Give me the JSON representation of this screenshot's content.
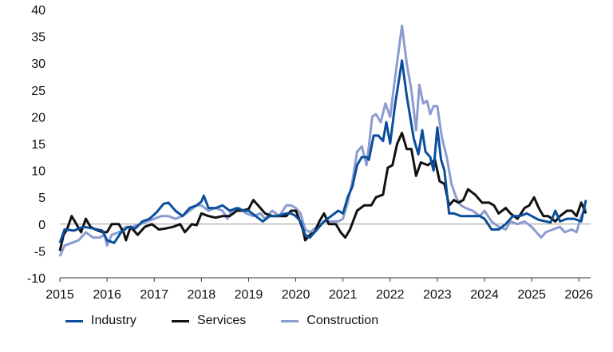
{
  "chart_data": {
    "type": "line",
    "title": "",
    "xlabel": "",
    "ylabel": "",
    "ylim": [
      -10,
      40
    ],
    "yticks": [
      -10,
      -5,
      0,
      5,
      10,
      15,
      20,
      25,
      30,
      35,
      40
    ],
    "xlim": [
      2015,
      2026.25
    ],
    "xticks": [
      2015,
      2016,
      2017,
      2018,
      2019,
      2020,
      2021,
      2022,
      2023,
      2024,
      2025,
      2026
    ],
    "grid": "horizontal",
    "legend_position": "bottom-left",
    "series": [
      {
        "name": "Industry",
        "color": "#0b4f9c",
        "points": [
          [
            2015.0,
            -3.5
          ],
          [
            2015.1,
            -1.0
          ],
          [
            2015.3,
            -1.2
          ],
          [
            2015.5,
            -0.5
          ],
          [
            2015.7,
            -0.8
          ],
          [
            2015.9,
            -1.2
          ],
          [
            2016.0,
            -3.0
          ],
          [
            2016.15,
            -3.5
          ],
          [
            2016.3,
            -1.5
          ],
          [
            2016.45,
            -0.5
          ],
          [
            2016.6,
            -0.8
          ],
          [
            2016.75,
            0.5
          ],
          [
            2016.9,
            1.0
          ],
          [
            2017.05,
            2.2
          ],
          [
            2017.2,
            3.8
          ],
          [
            2017.3,
            4.0
          ],
          [
            2017.45,
            2.5
          ],
          [
            2017.6,
            1.5
          ],
          [
            2017.75,
            3.0
          ],
          [
            2017.9,
            3.5
          ],
          [
            2018.0,
            4.2
          ],
          [
            2018.05,
            5.3
          ],
          [
            2018.15,
            3.0
          ],
          [
            2018.3,
            3.0
          ],
          [
            2018.45,
            3.5
          ],
          [
            2018.6,
            2.5
          ],
          [
            2018.75,
            3.0
          ],
          [
            2018.9,
            2.5
          ],
          [
            2019.0,
            2.5
          ],
          [
            2019.15,
            1.5
          ],
          [
            2019.3,
            0.5
          ],
          [
            2019.45,
            1.5
          ],
          [
            2019.6,
            1.5
          ],
          [
            2019.8,
            2.0
          ],
          [
            2019.9,
            2.0
          ],
          [
            2020.0,
            1.5
          ],
          [
            2020.1,
            0.5
          ],
          [
            2020.2,
            -2.0
          ],
          [
            2020.3,
            -2.5
          ],
          [
            2020.45,
            -1.0
          ],
          [
            2020.6,
            0.5
          ],
          [
            2020.75,
            1.5
          ],
          [
            2020.9,
            2.5
          ],
          [
            2021.0,
            2.0
          ],
          [
            2021.1,
            5.0
          ],
          [
            2021.2,
            7.0
          ],
          [
            2021.3,
            11.0
          ],
          [
            2021.4,
            12.5
          ],
          [
            2021.5,
            12.5
          ],
          [
            2021.55,
            12.0
          ],
          [
            2021.65,
            16.5
          ],
          [
            2021.75,
            16.5
          ],
          [
            2021.85,
            15.5
          ],
          [
            2021.92,
            19.0
          ],
          [
            2022.0,
            15.0
          ],
          [
            2022.1,
            22.0
          ],
          [
            2022.25,
            30.5
          ],
          [
            2022.35,
            24.0
          ],
          [
            2022.5,
            16.0
          ],
          [
            2022.6,
            13.0
          ],
          [
            2022.68,
            17.5
          ],
          [
            2022.75,
            13.5
          ],
          [
            2022.85,
            12.5
          ],
          [
            2022.92,
            10.0
          ],
          [
            2023.0,
            18.0
          ],
          [
            2023.08,
            12.0
          ],
          [
            2023.15,
            10.0
          ],
          [
            2023.25,
            2.0
          ],
          [
            2023.35,
            2.0
          ],
          [
            2023.5,
            1.5
          ],
          [
            2023.6,
            1.5
          ],
          [
            2023.75,
            1.5
          ],
          [
            2023.9,
            1.5
          ],
          [
            2024.0,
            1.0
          ],
          [
            2024.15,
            -1.0
          ],
          [
            2024.3,
            -1.0
          ],
          [
            2024.45,
            0.0
          ],
          [
            2024.6,
            1.5
          ],
          [
            2024.75,
            1.5
          ],
          [
            2024.9,
            2.0
          ],
          [
            2025.0,
            1.5
          ],
          [
            2025.15,
            0.8
          ],
          [
            2025.3,
            0.5
          ],
          [
            2025.4,
            0.3
          ],
          [
            2025.5,
            2.5
          ],
          [
            2025.6,
            0.5
          ],
          [
            2025.75,
            1.0
          ],
          [
            2025.9,
            1.0
          ],
          [
            2026.05,
            0.5
          ],
          [
            2026.15,
            4.5
          ]
        ]
      },
      {
        "name": "Services",
        "color": "#111111",
        "points": [
          [
            2015.0,
            -5.0
          ],
          [
            2015.08,
            -2.0
          ],
          [
            2015.15,
            -1.0
          ],
          [
            2015.25,
            1.5
          ],
          [
            2015.35,
            0.0
          ],
          [
            2015.45,
            -1.5
          ],
          [
            2015.55,
            1.0
          ],
          [
            2015.65,
            -0.5
          ],
          [
            2015.75,
            -1.0
          ],
          [
            2015.9,
            -1.5
          ],
          [
            2016.0,
            -1.5
          ],
          [
            2016.1,
            0.0
          ],
          [
            2016.25,
            0.0
          ],
          [
            2016.35,
            -1.5
          ],
          [
            2016.4,
            -3.0
          ],
          [
            2016.5,
            -0.5
          ],
          [
            2016.65,
            -2.0
          ],
          [
            2016.8,
            -0.5
          ],
          [
            2016.95,
            0.0
          ],
          [
            2017.1,
            -1.0
          ],
          [
            2017.25,
            -0.8
          ],
          [
            2017.4,
            -0.5
          ],
          [
            2017.55,
            0.0
          ],
          [
            2017.65,
            -1.5
          ],
          [
            2017.8,
            0.0
          ],
          [
            2017.9,
            -0.2
          ],
          [
            2018.0,
            2.0
          ],
          [
            2018.15,
            1.5
          ],
          [
            2018.3,
            1.2
          ],
          [
            2018.45,
            1.5
          ],
          [
            2018.6,
            1.5
          ],
          [
            2018.75,
            2.5
          ],
          [
            2018.85,
            2.5
          ],
          [
            2019.0,
            2.8
          ],
          [
            2019.1,
            4.5
          ],
          [
            2019.2,
            3.5
          ],
          [
            2019.35,
            2.0
          ],
          [
            2019.5,
            1.5
          ],
          [
            2019.65,
            1.5
          ],
          [
            2019.8,
            1.5
          ],
          [
            2019.9,
            2.5
          ],
          [
            2020.0,
            2.5
          ],
          [
            2020.05,
            1.5
          ],
          [
            2020.15,
            -1.0
          ],
          [
            2020.2,
            -3.0
          ],
          [
            2020.3,
            -2.0
          ],
          [
            2020.4,
            -1.5
          ],
          [
            2020.5,
            0.5
          ],
          [
            2020.6,
            2.0
          ],
          [
            2020.7,
            0.0
          ],
          [
            2020.85,
            0.0
          ],
          [
            2020.95,
            -1.5
          ],
          [
            2021.05,
            -2.5
          ],
          [
            2021.15,
            -1.0
          ],
          [
            2021.3,
            2.5
          ],
          [
            2021.45,
            3.5
          ],
          [
            2021.6,
            3.5
          ],
          [
            2021.7,
            5.0
          ],
          [
            2021.85,
            5.5
          ],
          [
            2021.95,
            10.5
          ],
          [
            2022.05,
            11.0
          ],
          [
            2022.15,
            15.0
          ],
          [
            2022.25,
            17.0
          ],
          [
            2022.35,
            14.0
          ],
          [
            2022.45,
            14.0
          ],
          [
            2022.55,
            9.0
          ],
          [
            2022.65,
            11.5
          ],
          [
            2022.8,
            11.0
          ],
          [
            2022.95,
            12.0
          ],
          [
            2023.05,
            8.0
          ],
          [
            2023.15,
            7.5
          ],
          [
            2023.25,
            3.5
          ],
          [
            2023.35,
            4.5
          ],
          [
            2023.45,
            4.0
          ],
          [
            2023.55,
            4.5
          ],
          [
            2023.65,
            6.5
          ],
          [
            2023.8,
            5.5
          ],
          [
            2023.95,
            4.0
          ],
          [
            2024.1,
            4.0
          ],
          [
            2024.2,
            3.5
          ],
          [
            2024.3,
            2.0
          ],
          [
            2024.45,
            3.0
          ],
          [
            2024.55,
            2.0
          ],
          [
            2024.7,
            1.0
          ],
          [
            2024.85,
            3.0
          ],
          [
            2024.95,
            3.5
          ],
          [
            2025.05,
            5.0
          ],
          [
            2025.15,
            3.0
          ],
          [
            2025.25,
            1.5
          ],
          [
            2025.35,
            1.5
          ],
          [
            2025.5,
            0.5
          ],
          [
            2025.6,
            1.5
          ],
          [
            2025.75,
            2.5
          ],
          [
            2025.85,
            2.5
          ],
          [
            2025.95,
            1.5
          ],
          [
            2026.05,
            4.0
          ],
          [
            2026.15,
            2.0
          ]
        ]
      },
      {
        "name": "Construction",
        "color": "#8c9cd0",
        "points": [
          [
            2015.0,
            -6.0
          ],
          [
            2015.1,
            -4.0
          ],
          [
            2015.25,
            -3.5
          ],
          [
            2015.4,
            -3.0
          ],
          [
            2015.55,
            -1.5
          ],
          [
            2015.7,
            -2.5
          ],
          [
            2015.85,
            -2.5
          ],
          [
            2015.95,
            -2.0
          ],
          [
            2016.0,
            -4.0
          ],
          [
            2016.1,
            -2.0
          ],
          [
            2016.25,
            -1.5
          ],
          [
            2016.4,
            -0.5
          ],
          [
            2016.55,
            -0.5
          ],
          [
            2016.7,
            0.0
          ],
          [
            2016.85,
            0.5
          ],
          [
            2017.0,
            1.0
          ],
          [
            2017.15,
            1.5
          ],
          [
            2017.3,
            1.5
          ],
          [
            2017.45,
            1.0
          ],
          [
            2017.6,
            1.5
          ],
          [
            2017.75,
            2.5
          ],
          [
            2017.9,
            3.5
          ],
          [
            2018.0,
            3.5
          ],
          [
            2018.15,
            2.5
          ],
          [
            2018.3,
            3.0
          ],
          [
            2018.45,
            2.5
          ],
          [
            2018.55,
            1.0
          ],
          [
            2018.65,
            2.5
          ],
          [
            2018.8,
            3.0
          ],
          [
            2018.95,
            2.0
          ],
          [
            2019.1,
            1.5
          ],
          [
            2019.25,
            2.0
          ],
          [
            2019.35,
            1.0
          ],
          [
            2019.5,
            2.5
          ],
          [
            2019.65,
            1.5
          ],
          [
            2019.8,
            3.5
          ],
          [
            2019.9,
            3.5
          ],
          [
            2020.0,
            3.0
          ],
          [
            2020.1,
            2.0
          ],
          [
            2020.2,
            -1.0
          ],
          [
            2020.3,
            -1.5
          ],
          [
            2020.45,
            -0.5
          ],
          [
            2020.6,
            0.5
          ],
          [
            2020.75,
            0.5
          ],
          [
            2020.9,
            0.5
          ],
          [
            2021.0,
            1.0
          ],
          [
            2021.1,
            4.0
          ],
          [
            2021.2,
            8.0
          ],
          [
            2021.3,
            13.5
          ],
          [
            2021.4,
            14.5
          ],
          [
            2021.5,
            11.0
          ],
          [
            2021.55,
            14.5
          ],
          [
            2021.62,
            20.0
          ],
          [
            2021.7,
            20.5
          ],
          [
            2021.8,
            19.0
          ],
          [
            2021.9,
            22.5
          ],
          [
            2022.0,
            20.0
          ],
          [
            2022.1,
            27.0
          ],
          [
            2022.25,
            37.0
          ],
          [
            2022.35,
            30.0
          ],
          [
            2022.45,
            25.0
          ],
          [
            2022.55,
            17.5
          ],
          [
            2022.62,
            26.0
          ],
          [
            2022.7,
            22.5
          ],
          [
            2022.78,
            23.0
          ],
          [
            2022.85,
            20.5
          ],
          [
            2022.92,
            22.0
          ],
          [
            2023.0,
            22.0
          ],
          [
            2023.1,
            16.0
          ],
          [
            2023.2,
            12.5
          ],
          [
            2023.3,
            7.5
          ],
          [
            2023.4,
            5.0
          ],
          [
            2023.5,
            3.5
          ],
          [
            2023.6,
            3.0
          ],
          [
            2023.75,
            2.5
          ],
          [
            2023.9,
            1.5
          ],
          [
            2024.0,
            2.5
          ],
          [
            2024.15,
            0.5
          ],
          [
            2024.3,
            -0.5
          ],
          [
            2024.45,
            -1.0
          ],
          [
            2024.55,
            0.5
          ],
          [
            2024.7,
            0.0
          ],
          [
            2024.85,
            0.5
          ],
          [
            2025.0,
            -0.5
          ],
          [
            2025.1,
            -1.5
          ],
          [
            2025.2,
            -2.5
          ],
          [
            2025.3,
            -1.5
          ],
          [
            2025.45,
            -1.0
          ],
          [
            2025.6,
            -0.5
          ],
          [
            2025.7,
            -1.5
          ],
          [
            2025.85,
            -1.0
          ],
          [
            2025.95,
            -1.5
          ],
          [
            2026.05,
            1.5
          ],
          [
            2026.15,
            3.0
          ]
        ]
      }
    ]
  }
}
